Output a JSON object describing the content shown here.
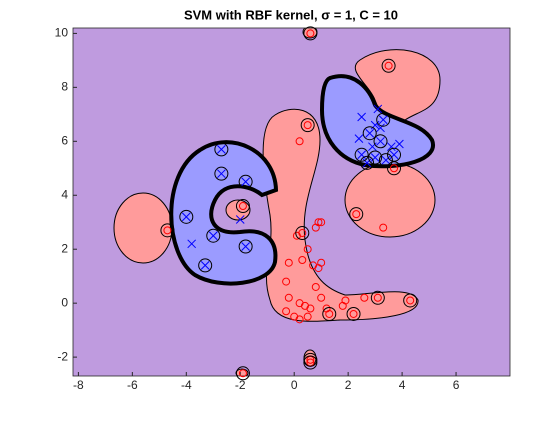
{
  "chart_data": {
    "type": "scatter",
    "title": "SVM with RBF kernel, σ = 1, C = 10",
    "xlim": [
      -8.2,
      8
    ],
    "ylim": [
      -2.7,
      10.2
    ],
    "xticks": [
      -8,
      -6,
      -4,
      -2,
      0,
      2,
      4,
      6
    ],
    "yticks": [
      -2,
      0,
      2,
      4,
      6,
      8,
      10
    ],
    "series": [
      {
        "marker": "x",
        "color": "#0000ff",
        "x": [
          -3.8,
          -3.3,
          -3.0,
          -1.8,
          -2.7,
          -2.7,
          -1.8,
          -4.0,
          -2.0,
          2.5,
          2.7,
          3.0,
          3.2,
          3.3,
          3.1,
          2.8,
          3.6,
          3.9,
          2.5,
          3.0,
          3.4,
          3.7,
          3.2,
          2.4,
          2.9
        ],
        "y": [
          2.2,
          1.4,
          2.5,
          2.1,
          4.8,
          5.7,
          4.5,
          3.2,
          3.1,
          5.5,
          5.2,
          5.4,
          6.0,
          6.8,
          7.2,
          6.3,
          5.8,
          5.9,
          6.9,
          6.6,
          5.3,
          5.5,
          6.5,
          6.1,
          5.8
        ]
      },
      {
        "marker": "o",
        "color": "#ff0000",
        "x": [
          0.2,
          0.5,
          0.3,
          0.5,
          0.8,
          1.0,
          0.7,
          0.9,
          1.0,
          0.3,
          -0.2,
          -0.3,
          -0.2,
          -0.3,
          0.2,
          0.4,
          0.6,
          0.8,
          1.0,
          1.2,
          1.3,
          0.0,
          0.2,
          0.5,
          1.8,
          1.9,
          2.2,
          2.6,
          3.1,
          4.3,
          2.3,
          3.3,
          3.7,
          3.5,
          -4.7,
          -1.9,
          0.6,
          0.6,
          0.6,
          -1.9,
          0.9,
          0.1
        ],
        "y": [
          6.0,
          6.6,
          2.6,
          2.0,
          2.8,
          3.0,
          1.4,
          1.3,
          1.5,
          1.6,
          1.5,
          0.8,
          0.2,
          -0.3,
          0.0,
          -0.1,
          -0.2,
          0.6,
          0.2,
          -0.2,
          -0.4,
          -0.5,
          -0.6,
          -0.5,
          -0.1,
          0.1,
          -0.4,
          0.2,
          0.2,
          0.1,
          3.3,
          2.8,
          5.0,
          8.8,
          2.7,
          3.6,
          10.0,
          -2.1,
          -2.2,
          -2.6,
          3.0,
          2.5
        ]
      },
      {
        "marker": "sv",
        "color": "#000000",
        "x": [
          -3.3,
          -3.0,
          -1.8,
          -2.7,
          -2.7,
          -1.8,
          -4.0,
          2.5,
          2.7,
          3.0,
          3.2,
          3.3,
          3.4,
          3.7,
          2.8,
          0.5,
          0.3,
          2.3,
          3.7,
          3.5,
          -4.7,
          -1.9,
          0.6,
          0.6,
          0.6,
          -1.9,
          1.3,
          2.2,
          3.1,
          4.3
        ],
        "y": [
          1.4,
          2.5,
          2.1,
          4.8,
          5.7,
          4.5,
          3.2,
          5.5,
          5.2,
          5.4,
          6.0,
          6.8,
          5.3,
          5.5,
          6.3,
          6.6,
          2.6,
          3.3,
          5.0,
          8.8,
          2.7,
          3.6,
          10.0,
          -2.1,
          -2.2,
          -2.6,
          -0.4,
          -0.4,
          0.2,
          0.1
        ]
      }
    ]
  }
}
